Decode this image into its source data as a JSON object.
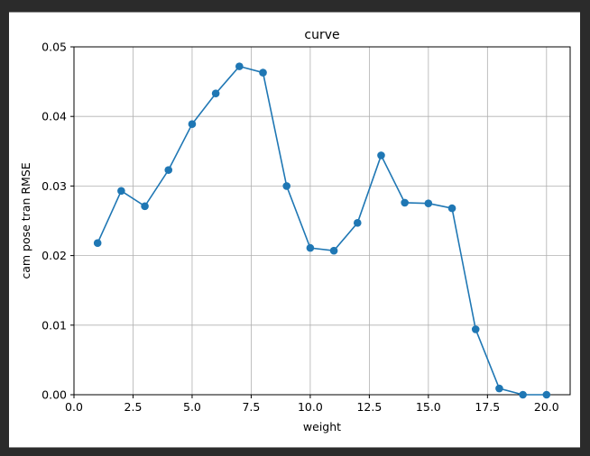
{
  "chart_data": {
    "type": "line",
    "title": "curve",
    "xlabel": "weight",
    "ylabel": "cam pose tran RMSE",
    "xlim": [
      0.0,
      21.0
    ],
    "ylim": [
      0.0,
      0.05
    ],
    "xticks": [
      0.0,
      2.5,
      5.0,
      7.5,
      10.0,
      12.5,
      15.0,
      17.5,
      20.0
    ],
    "xtick_labels": [
      "0.0",
      "2.5",
      "5.0",
      "7.5",
      "10.0",
      "12.5",
      "15.0",
      "17.5",
      "20.0"
    ],
    "yticks": [
      0.0,
      0.01,
      0.02,
      0.03,
      0.04,
      0.05
    ],
    "ytick_labels": [
      "0.00",
      "0.01",
      "0.02",
      "0.03",
      "0.04",
      "0.05"
    ],
    "grid": true,
    "series": [
      {
        "color": "#1f77b4",
        "marker": "circle",
        "x": [
          1,
          2,
          3,
          4,
          5,
          6,
          7,
          8,
          9,
          10,
          11,
          12,
          13,
          14,
          15,
          16,
          17,
          18,
          19,
          20
        ],
        "y": [
          0.0218,
          0.0293,
          0.0271,
          0.0323,
          0.0389,
          0.0433,
          0.0472,
          0.0463,
          0.03,
          0.0211,
          0.0207,
          0.0247,
          0.0344,
          0.0276,
          0.0275,
          0.0268,
          0.0094,
          0.0009,
          0.0,
          0.0
        ]
      }
    ]
  }
}
